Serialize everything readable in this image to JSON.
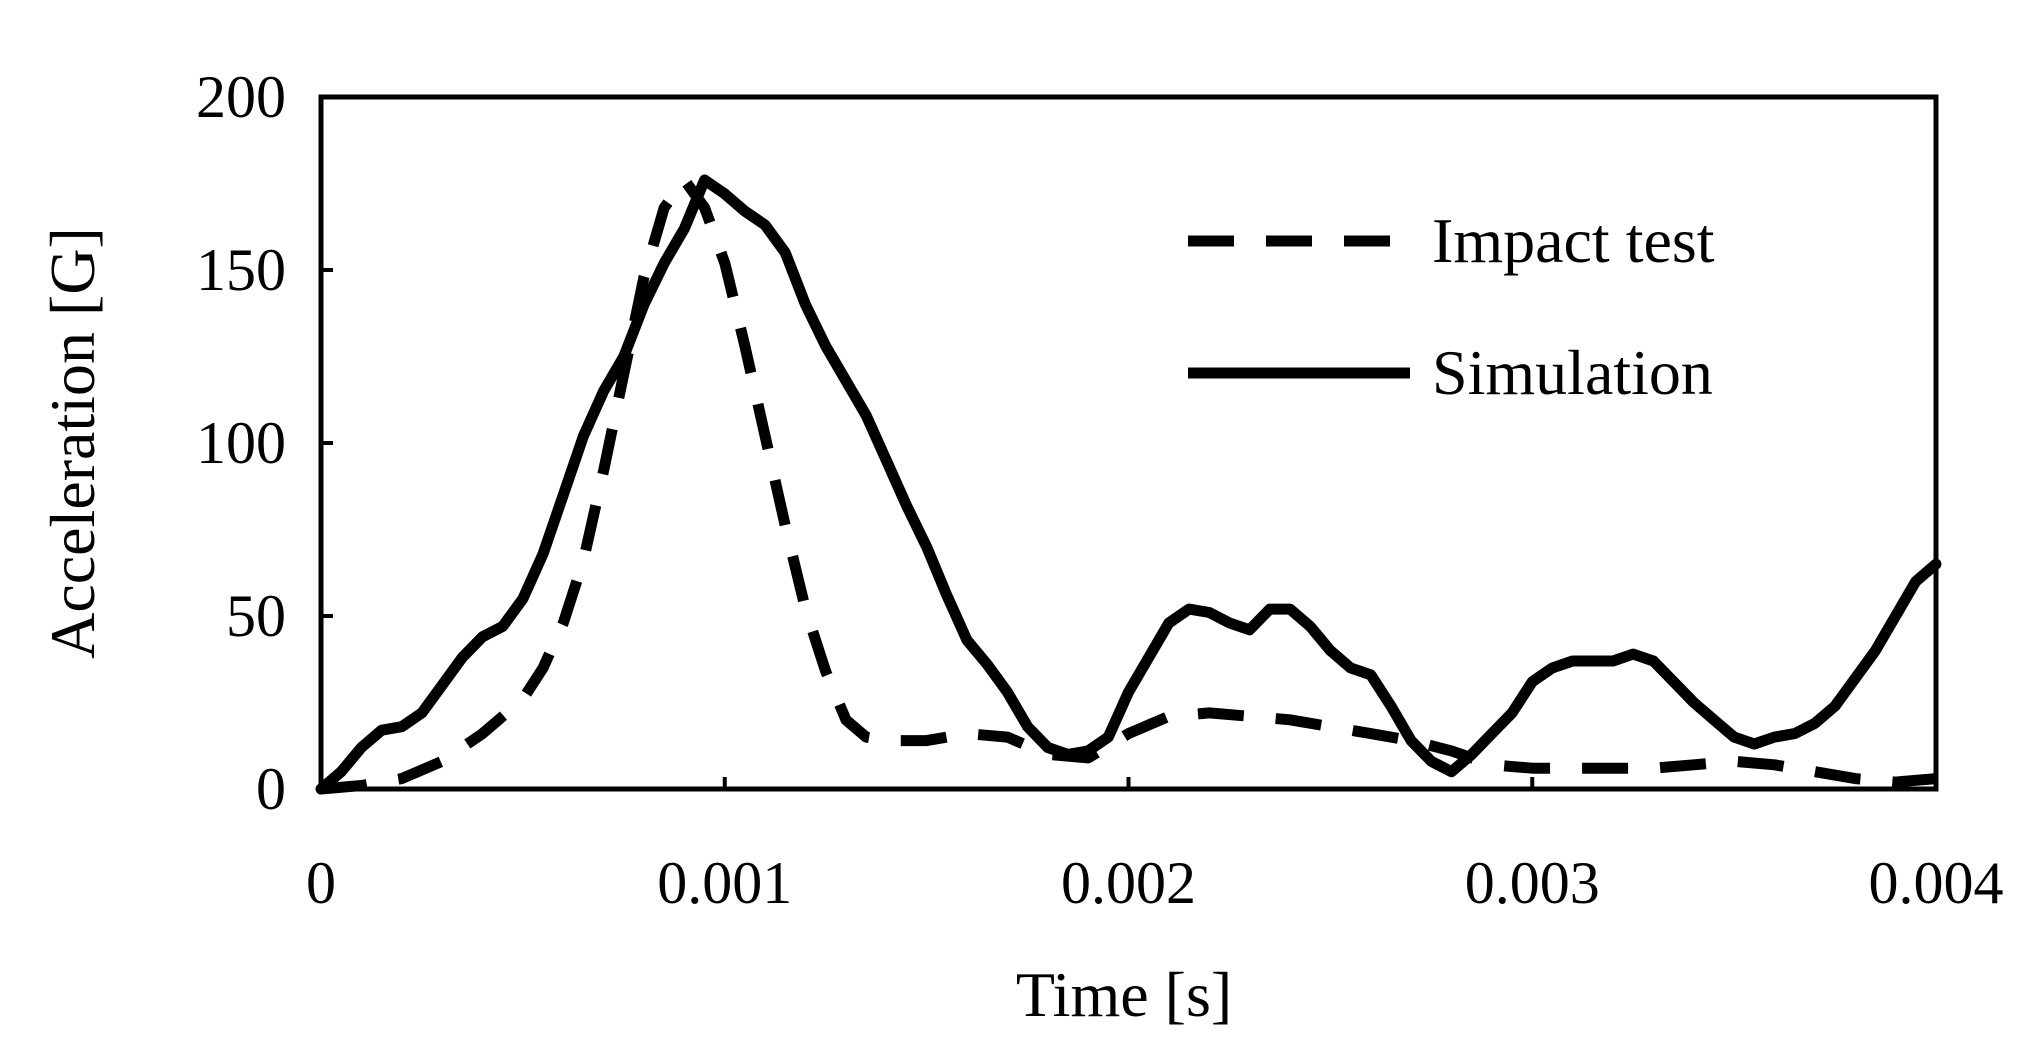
{
  "chart_data": {
    "type": "line",
    "title": "",
    "xlabel": "Time [s]",
    "ylabel": "Acceleration [G]",
    "xlim": [
      0,
      0.004
    ],
    "ylim": [
      0,
      200
    ],
    "xticks": [
      0,
      0.001,
      0.002,
      0.003,
      0.004
    ],
    "xtick_labels": [
      "0",
      "0.001",
      "0.002",
      "0.003",
      "0.004"
    ],
    "yticks": [
      0,
      50,
      100,
      150,
      200
    ],
    "ytick_labels": [
      "0",
      "50",
      "100",
      "150",
      "200"
    ],
    "grid": false,
    "legend_position": "top-right",
    "series": [
      {
        "name": "Impact test",
        "style": "dashed",
        "color": "#000000",
        "x": [
          0,
          0.0001,
          0.0002,
          0.0003,
          0.0004,
          0.0005,
          0.00055,
          0.0006,
          0.00065,
          0.0007,
          0.00075,
          0.0008,
          0.00085,
          0.0009,
          0.00095,
          0.001,
          0.00105,
          0.0011,
          0.00115,
          0.0012,
          0.00125,
          0.0013,
          0.00135,
          0.0014,
          0.0015,
          0.0016,
          0.0017,
          0.0018,
          0.0019,
          0.002,
          0.0021,
          0.0022,
          0.0023,
          0.0024,
          0.0025,
          0.0026,
          0.0027,
          0.0028,
          0.0029,
          0.003,
          0.0031,
          0.0032,
          0.0033,
          0.0034,
          0.0035,
          0.0036,
          0.0037,
          0.0038,
          0.0039,
          0.004
        ],
        "y": [
          0,
          1,
          3,
          8,
          16,
          26,
          35,
          48,
          66,
          92,
          120,
          148,
          168,
          176,
          168,
          152,
          128,
          102,
          76,
          52,
          34,
          20,
          15,
          14,
          14,
          16,
          15,
          10,
          9,
          16,
          21,
          22,
          21,
          20,
          18,
          16,
          14,
          11,
          7,
          6,
          6,
          6,
          6,
          7,
          8,
          7,
          5,
          3,
          2,
          3
        ]
      },
      {
        "name": "Simulation",
        "style": "solid",
        "color": "#000000",
        "x": [
          0,
          5e-05,
          0.0001,
          0.00015,
          0.0002,
          0.00025,
          0.0003,
          0.00035,
          0.0004,
          0.00045,
          0.0005,
          0.00055,
          0.0006,
          0.00065,
          0.0007,
          0.00075,
          0.0008,
          0.00085,
          0.0009,
          0.00095,
          0.001,
          0.00105,
          0.0011,
          0.00115,
          0.0012,
          0.00125,
          0.0013,
          0.00135,
          0.0014,
          0.00145,
          0.0015,
          0.00155,
          0.0016,
          0.00165,
          0.0017,
          0.00175,
          0.0018,
          0.00185,
          0.0019,
          0.00195,
          0.002,
          0.00205,
          0.0021,
          0.00215,
          0.0022,
          0.00225,
          0.0023,
          0.00235,
          0.0024,
          0.00245,
          0.0025,
          0.00255,
          0.0026,
          0.00265,
          0.0027,
          0.00275,
          0.0028,
          0.00285,
          0.0029,
          0.00295,
          0.003,
          0.00305,
          0.0031,
          0.00315,
          0.0032,
          0.00325,
          0.0033,
          0.00335,
          0.0034,
          0.00345,
          0.0035,
          0.00355,
          0.0036,
          0.00365,
          0.0037,
          0.00375,
          0.0038,
          0.00385,
          0.0039,
          0.00395,
          0.004
        ],
        "y": [
          0,
          5,
          12,
          17,
          18,
          22,
          30,
          38,
          44,
          47,
          55,
          68,
          85,
          102,
          115,
          125,
          140,
          152,
          162,
          176,
          172,
          167,
          163,
          155,
          140,
          128,
          118,
          108,
          95,
          82,
          70,
          56,
          43,
          36,
          28,
          18,
          12,
          10,
          11,
          15,
          28,
          38,
          48,
          52,
          51,
          48,
          46,
          52,
          52,
          47,
          40,
          35,
          33,
          24,
          14,
          8,
          5,
          10,
          16,
          22,
          31,
          35,
          37,
          37,
          37,
          39,
          37,
          31,
          25,
          20,
          15,
          13,
          15,
          16,
          19,
          24,
          32,
          40,
          50,
          60,
          65
        ]
      }
    ]
  }
}
